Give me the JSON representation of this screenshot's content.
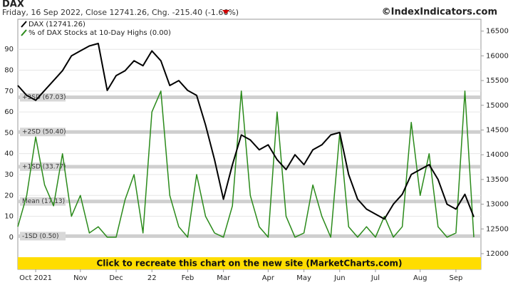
{
  "chart_data": {
    "type": "line",
    "title": "DAX",
    "subtitle": "Friday, 16 Sep 2022, Close 12741.26, Chg. -215.40 (-1.66%)",
    "source": "©IndexIndicators.com",
    "banner": "Click to recreate this chart on the new site (MarketCharts.com)",
    "categories": [
      null,
      null,
      "Oct 2021",
      null,
      null,
      null,
      null,
      "Nov",
      null,
      null,
      null,
      "Dec",
      null,
      null,
      null,
      "22",
      null,
      null,
      null,
      "Feb",
      null,
      null,
      null,
      "Mar",
      null,
      null,
      null,
      null,
      "Apr",
      null,
      null,
      null,
      "May",
      null,
      null,
      null,
      "Jun",
      null,
      null,
      null,
      "Jul",
      null,
      null,
      null,
      null,
      "Aug",
      null,
      null,
      null,
      "Sep",
      null,
      null
    ],
    "series": [
      {
        "name": "DAX (12741.26)",
        "color": "#000000",
        "axis": "y2",
        "values": [
          15400,
          15200,
          15100,
          15300,
          15500,
          15700,
          16000,
          16100,
          16200,
          16250,
          15300,
          15600,
          15700,
          15900,
          15800,
          16100,
          15900,
          15400,
          15500,
          15300,
          15200,
          14600,
          13900,
          13100,
          13800,
          14400,
          14300,
          14100,
          14200,
          13900,
          13700,
          14000,
          13800,
          14100,
          14200,
          14400,
          14450,
          13600,
          13100,
          12900,
          12800,
          12700,
          13000,
          13200,
          13600,
          13700,
          13800,
          13500,
          13000,
          12900,
          13200,
          12741.26
        ]
      },
      {
        "name": "% of DAX Stocks at 10-Day Highs (0.00)",
        "color": "#2a8a1a",
        "values": [
          5,
          20,
          48,
          25,
          15,
          40,
          10,
          20,
          2,
          5,
          0,
          0,
          18,
          30,
          2,
          60,
          70,
          20,
          5,
          0,
          30,
          10,
          2,
          0,
          15,
          70,
          20,
          5,
          0,
          60,
          10,
          0,
          2,
          25,
          10,
          0,
          50,
          5,
          0,
          5,
          0,
          10,
          0,
          5,
          55,
          20,
          40,
          5,
          0,
          2,
          70,
          0
        ]
      }
    ],
    "bands": [
      {
        "label": "+3SD (67.03)",
        "value": 67.03
      },
      {
        "label": "+2SD (50.40)",
        "value": 50.4
      },
      {
        "label": "+1SD (33.77)",
        "value": 33.77
      },
      {
        "label": "Mean (17.13)",
        "value": 17.13
      },
      {
        "label": "-1SD (0.50)",
        "value": 0.5
      }
    ],
    "ylim": [
      -15.4,
      104.4
    ],
    "yticks": [
      0,
      10,
      20,
      30,
      40,
      50,
      60,
      70,
      80,
      90
    ],
    "y2lim": [
      11683,
      16740
    ],
    "y2ticks": [
      12000,
      12500,
      13000,
      13500,
      14000,
      14500,
      15000,
      15500,
      16000,
      16500
    ],
    "grid": true
  }
}
